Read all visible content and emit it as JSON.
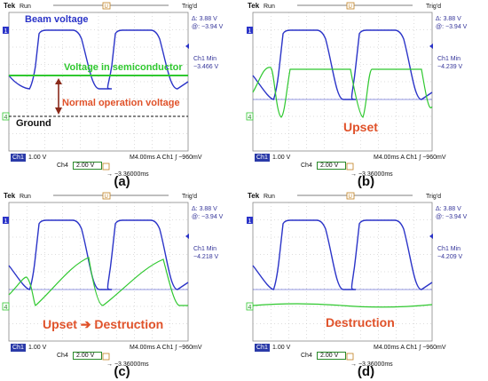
{
  "scope_common": {
    "brand": "Tek",
    "run": "Run",
    "trig": "Trig'd",
    "cursor_delta": "Δ: 3.88 V",
    "cursor_at": "@: −3.94 V",
    "ch1_scale_label": "Ch1",
    "ch1_scale": "1.00 V",
    "ch4_label": "Ch4",
    "ch4_scale": "2.00 V",
    "timebase": "M4.00ms A Ch1 ∫ −960mV",
    "trigger_pos": "→ −3.36000ms",
    "ch1_marker": "1",
    "ch4_marker": "4",
    "ch1_min_label": "Ch1 Min"
  },
  "panels": [
    {
      "id": "a",
      "label": "(a)",
      "ch1_min": "−3.466 V",
      "annotations": {
        "beam_voltage": "Beam voltage",
        "semiconductor": "Voltage in semiconductor",
        "normal_operation": "Normal operation voltage",
        "ground": "Ground"
      }
    },
    {
      "id": "b",
      "label": "(b)",
      "ch1_min": "−4.239 V",
      "caption": "Upset"
    },
    {
      "id": "c",
      "label": "(c)",
      "ch1_min": "−4.218 V",
      "caption": "Upset ➔ Destruction"
    },
    {
      "id": "d",
      "label": "(d)",
      "ch1_min": "−4.209 V",
      "caption": "Destruction"
    }
  ],
  "colors": {
    "beam_trace": "#2b34c8",
    "semiconductor_trace": "#2fc82f",
    "caption_red": "#e0522a",
    "arrow": "#8a2a1a"
  }
}
